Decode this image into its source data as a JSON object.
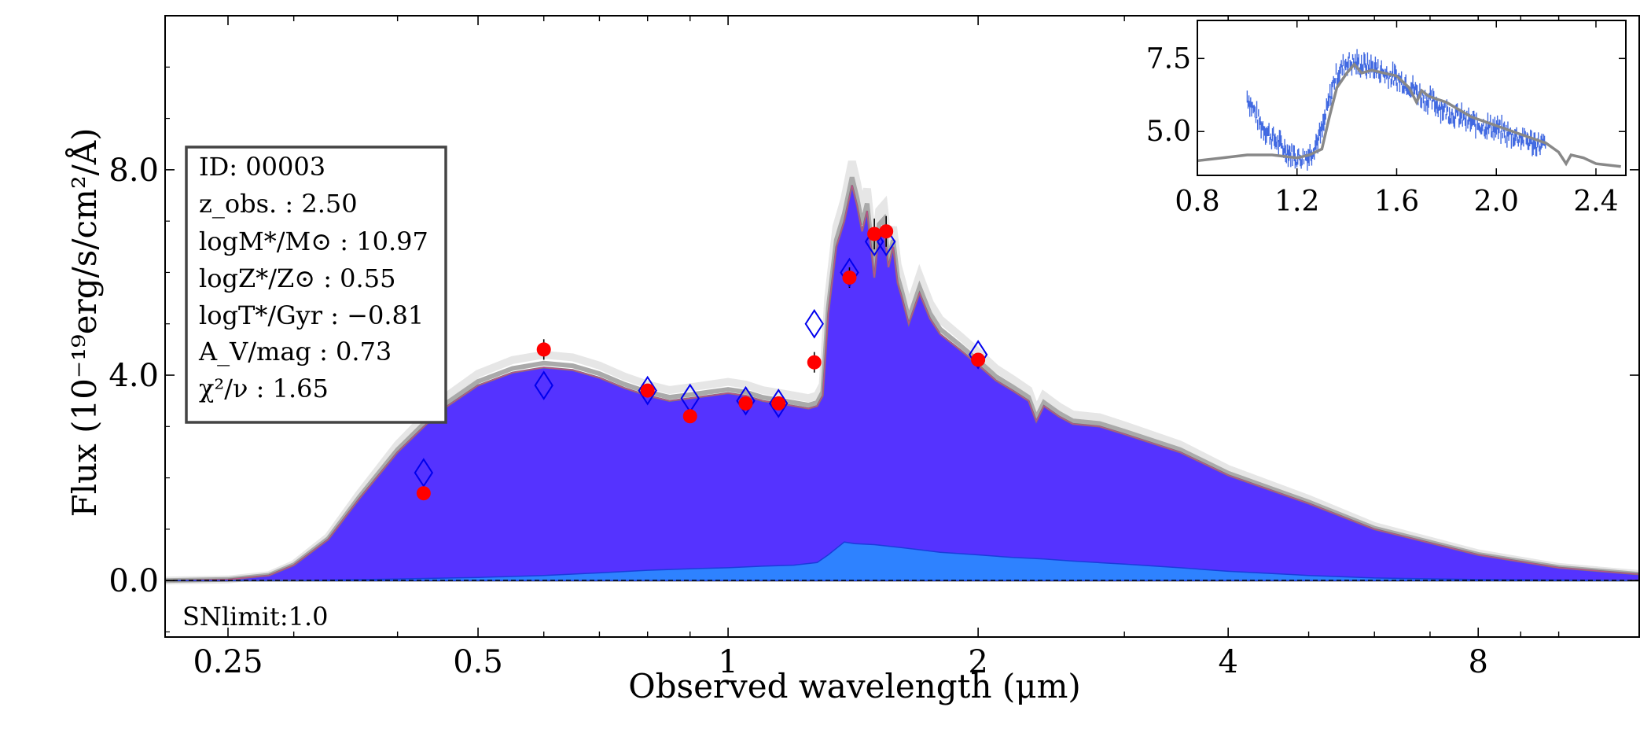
{
  "chart_data": [
    {
      "type": "area",
      "xlabel": "Observed wavelength (μm)",
      "ylabel": "Flux (10⁻¹⁹erg/s/cm²/Å)",
      "x_scale": "log",
      "xlim": [
        0.21,
        12.5
      ],
      "ylim": [
        -1.1,
        11.0
      ],
      "x_ticks": [
        0.25,
        0.5,
        1,
        2,
        4,
        8
      ],
      "x_tick_labels": [
        "0.25",
        "0.5",
        "1",
        "2",
        "4",
        "8"
      ],
      "y_ticks": [
        0.0,
        4.0,
        8.0
      ],
      "y_tick_labels": [
        "0.0",
        "4.0",
        "8.0"
      ],
      "model_total": {
        "color": "#5533ff",
        "x": [
          0.21,
          0.25,
          0.28,
          0.3,
          0.33,
          0.36,
          0.4,
          0.45,
          0.5,
          0.55,
          0.6,
          0.65,
          0.7,
          0.75,
          0.8,
          0.85,
          0.9,
          0.95,
          1.0,
          1.05,
          1.1,
          1.15,
          1.2,
          1.25,
          1.28,
          1.3,
          1.32,
          1.35,
          1.38,
          1.41,
          1.43,
          1.45,
          1.47,
          1.5,
          1.52,
          1.54,
          1.56,
          1.58,
          1.6,
          1.62,
          1.65,
          1.7,
          1.72,
          1.75,
          1.8,
          1.9,
          2.0,
          2.1,
          2.2,
          2.3,
          2.35,
          2.4,
          2.5,
          2.6,
          2.8,
          3.0,
          3.5,
          4.0,
          5.0,
          6.0,
          8.0,
          10.0,
          12.5
        ],
        "y": [
          0.0,
          0.02,
          0.1,
          0.3,
          0.8,
          1.6,
          2.5,
          3.3,
          3.8,
          4.05,
          4.15,
          4.1,
          3.95,
          3.75,
          3.6,
          3.5,
          3.55,
          3.6,
          3.65,
          3.6,
          3.5,
          3.45,
          3.4,
          3.35,
          3.4,
          3.6,
          5.2,
          6.5,
          7.0,
          7.7,
          7.3,
          6.8,
          7.2,
          5.9,
          6.8,
          6.9,
          6.1,
          6.5,
          5.8,
          5.5,
          5.0,
          5.6,
          5.4,
          5.1,
          4.8,
          4.5,
          4.2,
          3.9,
          3.7,
          3.5,
          3.1,
          3.4,
          3.2,
          3.05,
          3.0,
          2.85,
          2.5,
          2.05,
          1.5,
          1.0,
          0.5,
          0.25,
          0.12
        ]
      },
      "model_component": {
        "color": "#2e82ff",
        "x": [
          0.21,
          0.3,
          0.4,
          0.5,
          0.6,
          0.7,
          0.8,
          0.9,
          1.0,
          1.1,
          1.2,
          1.28,
          1.32,
          1.38,
          1.42,
          1.5,
          1.6,
          1.7,
          1.8,
          2.0,
          2.2,
          2.4,
          2.6,
          3.0,
          3.5,
          4.0,
          5.0,
          6.0,
          8.0,
          10.0,
          12.5
        ],
        "y": [
          0.0,
          0.0,
          0.03,
          0.06,
          0.1,
          0.15,
          0.2,
          0.23,
          0.25,
          0.28,
          0.3,
          0.35,
          0.5,
          0.75,
          0.72,
          0.7,
          0.65,
          0.6,
          0.55,
          0.5,
          0.45,
          0.42,
          0.38,
          0.32,
          0.25,
          0.18,
          0.1,
          0.05,
          0.02,
          0.01,
          0.0
        ]
      },
      "model_photometry": {
        "marker": "diamond-open",
        "color": "#0000ee",
        "x": [
          0.43,
          0.6,
          0.8,
          0.9,
          1.05,
          1.15,
          1.27,
          1.4,
          1.5,
          1.55,
          2.0
        ],
        "y": [
          2.1,
          3.8,
          3.7,
          3.55,
          3.5,
          3.45,
          5.0,
          6.0,
          6.6,
          6.6,
          4.4
        ]
      },
      "observed_photometry": {
        "marker": "circle-filled",
        "color": "#ff0000",
        "x": [
          0.43,
          0.6,
          0.8,
          0.9,
          1.05,
          1.15,
          1.27,
          1.4,
          1.5,
          1.55,
          2.0
        ],
        "y": [
          1.7,
          4.5,
          3.7,
          3.2,
          3.45,
          3.45,
          4.25,
          5.9,
          6.75,
          6.8,
          4.3
        ],
        "err": [
          0.05,
          0.2,
          0.05,
          0.05,
          0.1,
          0.1,
          0.2,
          0.2,
          0.3,
          0.3,
          0.1
        ]
      },
      "info_box": [
        "ID: 00003",
        "z_obs. : 2.50",
        "logM*/M⊙ : 10.97",
        "logZ*/Z⊙ : 0.55",
        "logT*/Gyr : −0.81",
        "A_V/mag : 0.73",
        "χ²/ν : 1.65"
      ],
      "annotation": "SNlimit:1.0"
    },
    {
      "type": "line",
      "xlim": [
        0.8,
        2.52
      ],
      "ylim": [
        3.5,
        8.8
      ],
      "x_ticks": [
        0.8,
        1.2,
        1.6,
        2.0,
        2.4
      ],
      "x_tick_labels": [
        "0.8",
        "1.2",
        "1.6",
        "2.0",
        "2.4"
      ],
      "y_ticks": [
        5.0,
        7.5
      ],
      "y_tick_labels": [
        "5.0",
        "7.5"
      ],
      "model": {
        "color": "#888888",
        "x": [
          0.8,
          0.9,
          1.0,
          1.1,
          1.2,
          1.25,
          1.3,
          1.33,
          1.36,
          1.4,
          1.43,
          1.46,
          1.5,
          1.55,
          1.6,
          1.65,
          1.68,
          1.7,
          1.73,
          1.8,
          1.9,
          2.0,
          2.1,
          2.2,
          2.25,
          2.28,
          2.3,
          2.35,
          2.4,
          2.5
        ],
        "y": [
          4.0,
          4.1,
          4.2,
          4.2,
          4.1,
          4.2,
          4.4,
          5.5,
          6.5,
          7.0,
          7.3,
          7.0,
          7.1,
          7.0,
          6.9,
          6.5,
          6.0,
          6.4,
          6.2,
          6.0,
          5.5,
          5.2,
          4.9,
          4.6,
          4.3,
          3.9,
          4.2,
          4.1,
          3.9,
          3.8
        ]
      },
      "spectrum": {
        "color": "#4169e1",
        "x": [
          1.0,
          1.05,
          1.1,
          1.15,
          1.2,
          1.25,
          1.3,
          1.35,
          1.4,
          1.45,
          1.5,
          1.55,
          1.6,
          1.65,
          1.7,
          1.75,
          1.8,
          1.85,
          1.9,
          1.95,
          2.0,
          2.05,
          2.1,
          2.15,
          2.2
        ],
        "y": [
          6.2,
          5.3,
          4.8,
          4.4,
          4.1,
          4.2,
          5.0,
          6.8,
          7.4,
          7.3,
          7.2,
          7.0,
          6.8,
          6.6,
          6.2,
          6.0,
          5.7,
          5.5,
          5.3,
          5.2,
          5.1,
          4.9,
          4.8,
          4.6,
          4.5
        ],
        "noise": 0.35
      }
    }
  ]
}
